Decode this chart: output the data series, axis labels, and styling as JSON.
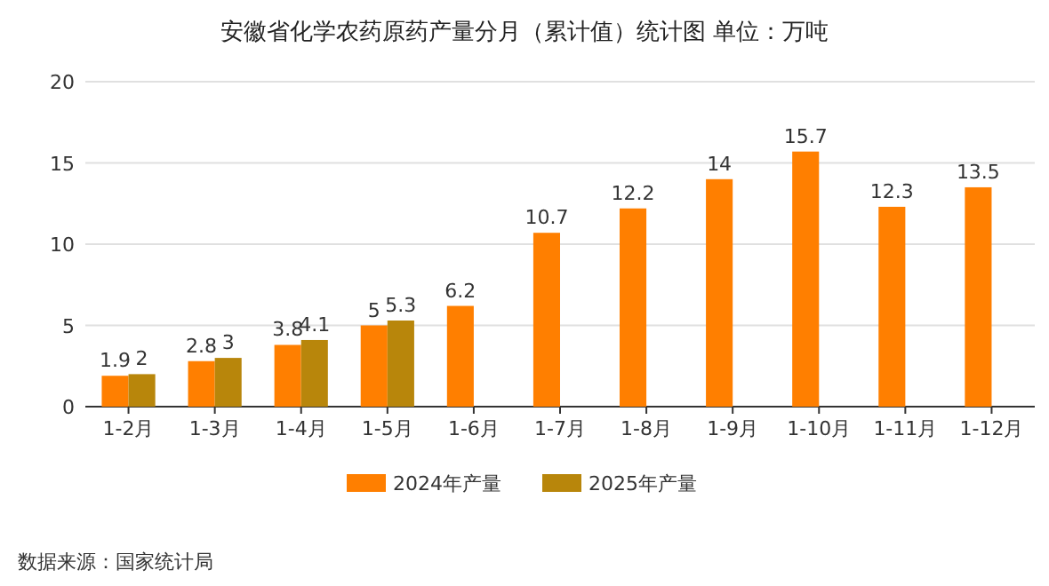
{
  "chart_data": {
    "type": "bar",
    "title": "安徽省化学农药原药产量分月（累计值）统计图 单位：万吨",
    "categories": [
      "1-2月",
      "1-3月",
      "1-4月",
      "1-5月",
      "1-6月",
      "1-7月",
      "1-8月",
      "1-9月",
      "1-10月",
      "1-11月",
      "1-12月"
    ],
    "series": [
      {
        "name": "2024年产量",
        "color": "#ff7f00",
        "values": [
          1.9,
          2.8,
          3.8,
          5,
          6.2,
          10.7,
          12.2,
          14,
          15.7,
          12.3,
          13.5
        ]
      },
      {
        "name": "2025年产量",
        "color": "#b8860b",
        "values": [
          2,
          3,
          4.1,
          5.3,
          null,
          null,
          null,
          null,
          null,
          null,
          null
        ]
      }
    ],
    "ylim": [
      0,
      20
    ],
    "yticks": [
      0,
      5,
      10,
      15,
      20
    ],
    "grid": "y",
    "legend": "bottom",
    "data_labels": true,
    "annotations": [
      "数据来源：国家统计局"
    ]
  }
}
